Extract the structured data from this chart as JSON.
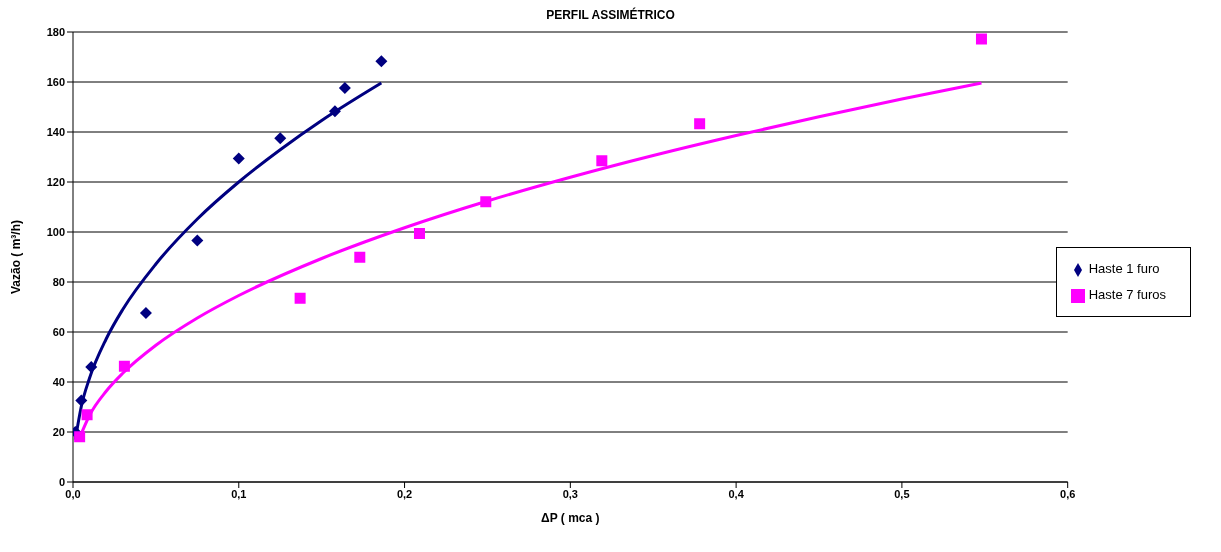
{
  "chart_data": {
    "type": "scatter",
    "title": "PERFIL ASSIMÉTRICO",
    "xlabel": "ΔP ( mca )",
    "ylabel": "Vazão ( m³/h)",
    "xlim": [
      0,
      0.6
    ],
    "xticks": [
      {
        "value": 0,
        "label": "0,0"
      },
      {
        "value": 0.1,
        "label": "0,1"
      },
      {
        "value": 0.2,
        "label": "0,2"
      },
      {
        "value": 0.3,
        "label": "0,3"
      },
      {
        "value": 0.4,
        "label": "0,4"
      },
      {
        "value": 0.5,
        "label": "0,5"
      },
      {
        "value": 0.6,
        "label": "0,6"
      }
    ],
    "ylim": [
      0,
      180
    ],
    "yticks": [
      0,
      20,
      40,
      60,
      80,
      100,
      120,
      140,
      160,
      180
    ],
    "grid": "y",
    "legend": "right",
    "series": [
      {
        "name": "Haste 1 furo",
        "marker": "diamond",
        "color": "#000080",
        "x": [
          0.0014,
          0.005,
          0.011,
          0.044,
          0.075,
          0.1,
          0.125,
          0.158,
          0.164,
          0.186
        ],
        "values": [
          20,
          32.6,
          46,
          67.6,
          96.6,
          129.4,
          137.5,
          148.3,
          157.6,
          168.3
        ]
      },
      {
        "name": "Haste 7 furos",
        "marker": "square",
        "color": "#ff00ff",
        "x": [
          0.004,
          0.0085,
          0.031,
          0.137,
          0.173,
          0.209,
          0.249,
          0.319,
          0.378,
          0.548
        ],
        "values": [
          18.1,
          26.9,
          46.3,
          73.5,
          89.9,
          99.4,
          112.1,
          128.5,
          143.3,
          177.2
        ]
      },
      {
        "type": "line",
        "marker": "none",
        "color": "#000080",
        "x": [
          0.0014,
          0.005,
          0.01,
          0.02,
          0.03,
          0.05,
          0.075,
          0.1,
          0.125,
          0.15,
          0.186
        ],
        "values": [
          16.9,
          30.2,
          41.6,
          57.2,
          69,
          87.2,
          105.2,
          120,
          132.9,
          144.6,
          159.6
        ]
      },
      {
        "type": "line",
        "marker": "none",
        "color": "#ff00ff",
        "x": [
          0.004,
          0.01,
          0.02,
          0.03,
          0.05,
          0.075,
          0.1,
          0.15,
          0.2,
          0.25,
          0.3,
          0.35,
          0.4,
          0.45,
          0.5,
          0.548
        ],
        "values": [
          17.7,
          26.7,
          36.3,
          43.5,
          54.7,
          65.6,
          74.6,
          89.4,
          101.7,
          112.4,
          121.9,
          130.6,
          138.6,
          146.1,
          153.2,
          159.6
        ]
      }
    ]
  }
}
